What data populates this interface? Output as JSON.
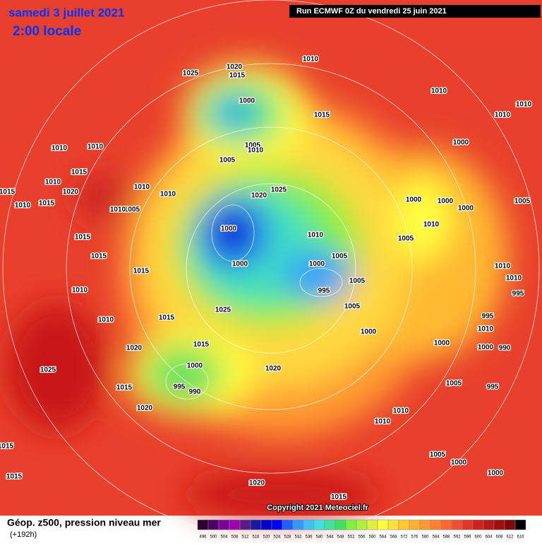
{
  "header": {
    "date": "samedi 3 juillet 2021",
    "time": "2:00 locale",
    "run": "Run ECMWF 0Z du vendredi 25 juin 2021"
  },
  "footer": {
    "title": "Géop. z500, pression niveau mer",
    "lead": "(+192h)",
    "copyright": "Copyright 2021 Meteociel.fr"
  },
  "scale": {
    "labels": [
      496,
      500,
      504,
      508,
      512,
      516,
      520,
      524,
      528,
      532,
      536,
      540,
      544,
      548,
      552,
      556,
      560,
      564,
      568,
      572,
      576,
      580,
      584,
      588,
      592,
      596,
      600,
      604,
      608,
      612,
      616
    ],
    "colors": [
      "#2a0033",
      "#4b0066",
      "#7a0099",
      "#a000b0",
      "#5a1a8a",
      "#1a1aa0",
      "#0000c8",
      "#0000ff",
      "#2060ff",
      "#3399ff",
      "#40c0ff",
      "#40e0e0",
      "#40e0a0",
      "#40e060",
      "#80f040",
      "#b0f040",
      "#e0f040",
      "#ffff40",
      "#ffe040",
      "#ffc830",
      "#ffb030",
      "#ff9830",
      "#ff8030",
      "#ff6830",
      "#f05030",
      "#e03828",
      "#d02020",
      "#b81818",
      "#a01010",
      "#800808",
      "#000000"
    ]
  },
  "isobar_labels": [
    1025,
    1020,
    1015,
    1010,
    1010,
    1010,
    1010,
    1000,
    1015,
    1000,
    1005,
    1010,
    1010,
    1010,
    1005,
    1015,
    1010,
    1015,
    1020,
    1010,
    1015,
    1010,
    1010,
    1020,
    1025,
    1005,
    1010,
    1000,
    1000,
    1000,
    1000,
    1010,
    1005,
    1015,
    1015,
    1010,
    1000,
    1000,
    1005,
    995,
    1005,
    1005,
    1015,
    1010,
    1025,
    1010,
    1015,
    1000,
    1020,
    1015,
    1025,
    1000,
    1020,
    995,
    990,
    1015,
    1020,
    1005,
    995,
    1010,
    1010,
    1005,
    1000,
    1000,
    1020,
    1015,
    1015,
    1015,
    1005,
    1010,
    995,
    1000,
    990,
    1000,
    1010,
    995,
    1010
  ]
}
